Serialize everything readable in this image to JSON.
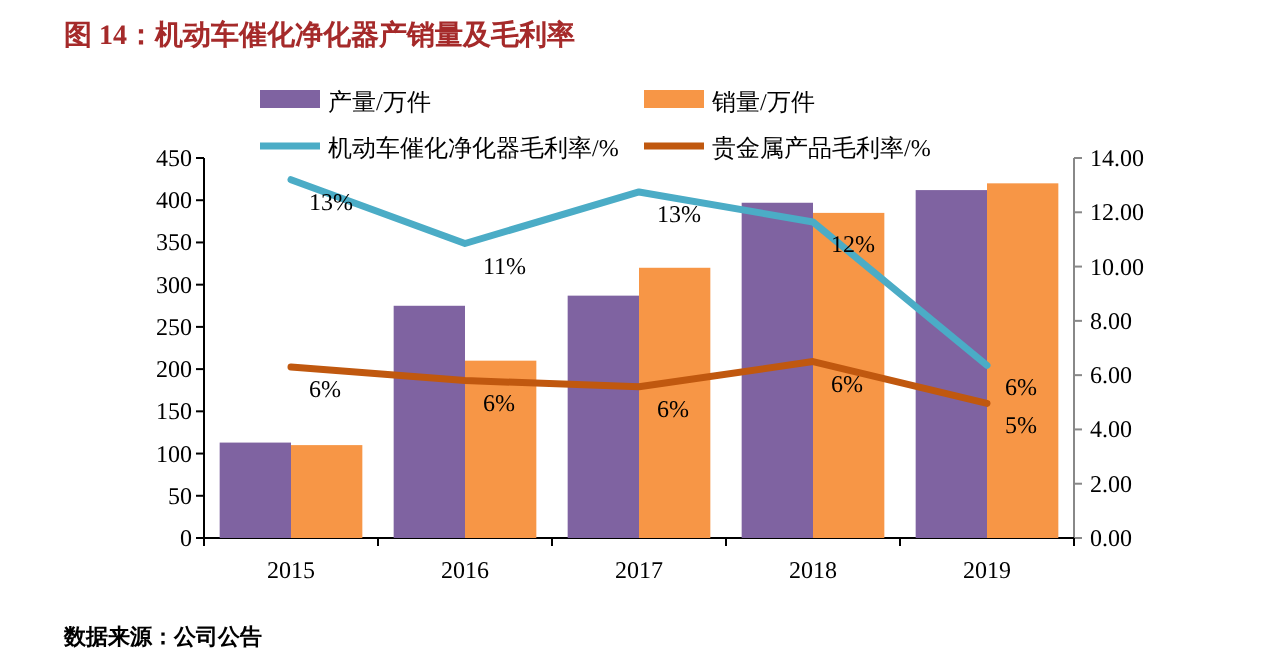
{
  "chart_data": {
    "type": "bar",
    "title": "图 14：机动车催化净化器产销量及毛利率",
    "categories": [
      "2015",
      "2016",
      "2017",
      "2018",
      "2019"
    ],
    "series": [
      {
        "name": "产量/万件",
        "color": "#7f63a1",
        "values": [
          113,
          275,
          287,
          397,
          412
        ]
      },
      {
        "name": "销量/万件",
        "color": "#f79646",
        "values": [
          110,
          210,
          320,
          385,
          420
        ]
      },
      {
        "name": "机动车催化净化器毛利率/%",
        "type": "line",
        "axis": "y2",
        "color": "#4bacc6",
        "values": [
          13.2,
          10.85,
          12.75,
          11.64,
          6.36
        ],
        "value_labels": [
          "13%",
          "11%",
          "13%",
          "12%",
          "6%"
        ]
      },
      {
        "name": "贵金属产品毛利率/%",
        "type": "line",
        "axis": "y2",
        "color": "#c0580f",
        "values": [
          6.3,
          5.8,
          5.57,
          6.5,
          4.96
        ],
        "value_labels": [
          "6%",
          "6%",
          "6%",
          "6%",
          "5%"
        ]
      }
    ],
    "ylim": [
      0,
      450
    ],
    "yticks": [
      0,
      50,
      100,
      150,
      200,
      250,
      300,
      350,
      400,
      450
    ],
    "y2lim": [
      0,
      14
    ],
    "y2ticks": [
      {
        "value": 0,
        "label": "0.00"
      },
      {
        "value": 2,
        "label": "2.00"
      },
      {
        "value": 4,
        "label": "4.00"
      },
      {
        "value": 6,
        "label": "6.00"
      },
      {
        "value": 8,
        "label": "8.00"
      },
      {
        "value": 10,
        "label": "10.00"
      },
      {
        "value": 12,
        "label": "12.00"
      },
      {
        "value": 14,
        "label": "14.00"
      }
    ],
    "legend": "top",
    "annotations": [
      "数据来源：公司公告"
    ]
  }
}
